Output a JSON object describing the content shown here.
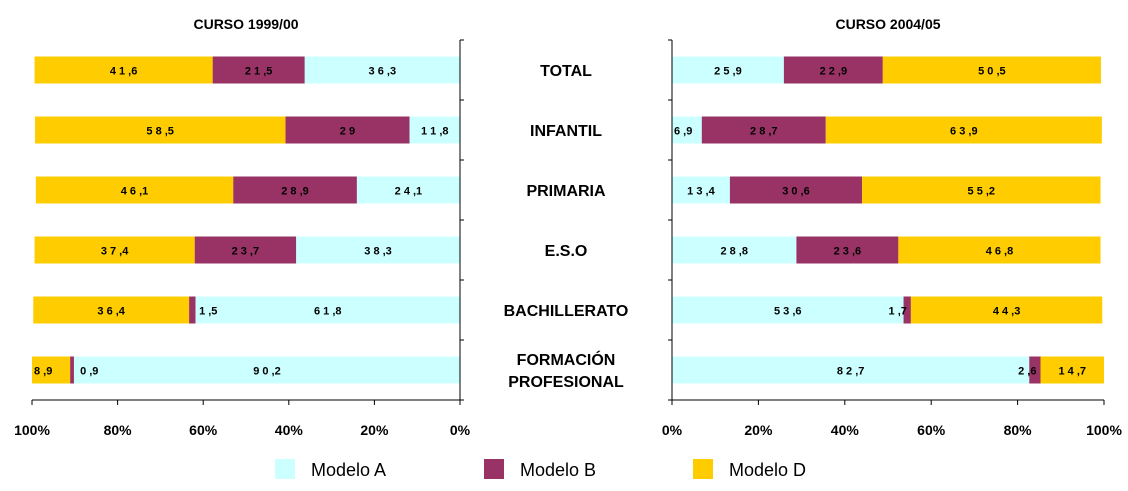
{
  "chart_data": {
    "type": "bar",
    "categories": [
      "TOTAL",
      "INFANTIL",
      "PRIMARIA",
      "E.S.O",
      "BACHILLERATO",
      "FORMACIÓN\nPROFESIONAL"
    ],
    "legend": [
      {
        "name": "Modelo A",
        "color": "#CCFFFF"
      },
      {
        "name": "Modelo B",
        "color": "#993366"
      },
      {
        "name": "Modelo D",
        "color": "#FFCC00"
      }
    ],
    "panels": [
      {
        "title": "CURSO 1999/00",
        "x_ticks": [
          "100%",
          "80%",
          "60%",
          "40%",
          "20%",
          "0%"
        ],
        "series": [
          {
            "name": "Modelo A",
            "values": [
              36.3,
              11.8,
              24.1,
              38.3,
              61.8,
              90.2
            ]
          },
          {
            "name": "Modelo B",
            "values": [
              21.5,
              29,
              28.9,
              23.7,
              1.5,
              0.9
            ]
          },
          {
            "name": "Modelo D",
            "values": [
              41.6,
              58.5,
              46.1,
              37.4,
              36.4,
              8.9
            ]
          }
        ],
        "labels": {
          "Modelo A": [
            "3 6 ,3",
            "1 1 ,8",
            "2 4 ,1",
            "3 8 ,3",
            "6 1 ,8",
            "9 0 ,2"
          ],
          "Modelo B": [
            "2 1 ,5",
            "2 9",
            "2 8 ,9",
            "2 3 ,7",
            "1 ,5",
            "0 ,9"
          ],
          "Modelo D": [
            "4 1 ,6",
            "5 8 ,5",
            "4 6 ,1",
            "3 7 ,4",
            "3 6 ,4",
            "8 ,9"
          ]
        }
      },
      {
        "title": "CURSO 2004/05",
        "x_ticks": [
          "0%",
          "20%",
          "40%",
          "60%",
          "80%",
          "100%"
        ],
        "series": [
          {
            "name": "Modelo A",
            "values": [
              25.9,
              6.9,
              13.4,
              28.8,
              53.6,
              82.7
            ]
          },
          {
            "name": "Modelo B",
            "values": [
              22.9,
              28.7,
              30.6,
              23.6,
              1.7,
              2.6
            ]
          },
          {
            "name": "Modelo D",
            "values": [
              50.5,
              63.9,
              55.2,
              46.8,
              44.3,
              14.7
            ]
          }
        ],
        "labels": {
          "Modelo A": [
            "2 5 ,9",
            "6 ,9",
            "1 3 ,4",
            "2 8 ,8",
            "5 3 ,6",
            "8 2 ,7"
          ],
          "Modelo B": [
            "2 2 ,9",
            "2 8 ,7",
            "3 0 ,6",
            "2 3 ,6",
            "1 ,7",
            "2 ,6"
          ],
          "Modelo D": [
            "5 0 ,5",
            "6 3 ,9",
            "5 5 ,2",
            "4 6 ,8",
            "4 4 ,3",
            "1 4 ,7"
          ]
        }
      }
    ],
    "xlim": [
      0,
      100
    ],
    "orientation": "horizontal",
    "stacked": true,
    "legend_position": "bottom"
  }
}
